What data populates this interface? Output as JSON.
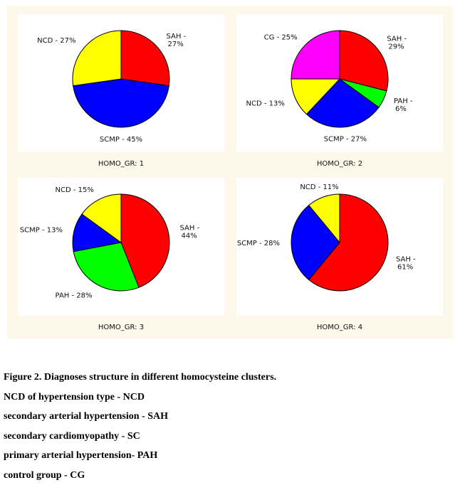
{
  "chart_data": [
    {
      "type": "pie",
      "group_label": "HOMO_GR: 1",
      "slices": [
        {
          "abbr": "SAH",
          "label": "SAH -",
          "pct_text": "27%",
          "value": 27,
          "color": "#ff0000"
        },
        {
          "abbr": "SCMP",
          "label": "SCMP -",
          "pct_text": "45%",
          "value": 45,
          "color": "#0000ff"
        },
        {
          "abbr": "NCD",
          "label": "NCD -",
          "pct_text": "27%",
          "value": 27,
          "color": "#ffff00"
        }
      ]
    },
    {
      "type": "pie",
      "group_label": "HOMO_GR: 2",
      "slices": [
        {
          "abbr": "SAH",
          "label": "SAH -",
          "pct_text": "29%",
          "value": 29,
          "color": "#ff0000"
        },
        {
          "abbr": "PAH",
          "label": "PAH -",
          "pct_text": "6%",
          "value": 6,
          "color": "#00ff00"
        },
        {
          "abbr": "SCMP",
          "label": "SCMP -",
          "pct_text": "27%",
          "value": 27,
          "color": "#0000ff"
        },
        {
          "abbr": "NCD",
          "label": "NCD -",
          "pct_text": "13%",
          "value": 13,
          "color": "#ffff00"
        },
        {
          "abbr": "CG",
          "label": "CG -",
          "pct_text": "25%",
          "value": 25,
          "color": "#ff00ff"
        }
      ]
    },
    {
      "type": "pie",
      "group_label": "HOMO_GR: 3",
      "slices": [
        {
          "abbr": "SAH",
          "label": "SAH -",
          "pct_text": "44%",
          "value": 44,
          "color": "#ff0000"
        },
        {
          "abbr": "PAH",
          "label": "PAH -",
          "pct_text": "28%",
          "value": 28,
          "color": "#00ff00"
        },
        {
          "abbr": "SCMP",
          "label": "SCMP -",
          "pct_text": "13%",
          "value": 13,
          "color": "#0000ff"
        },
        {
          "abbr": "NCD",
          "label": "NCD -",
          "pct_text": "15%",
          "value": 15,
          "color": "#ffff00"
        }
      ]
    },
    {
      "type": "pie",
      "group_label": "HOMO_GR: 4",
      "slices": [
        {
          "abbr": "SAH",
          "label": "SAH -",
          "pct_text": "61%",
          "value": 61,
          "color": "#ff0000"
        },
        {
          "abbr": "SCMP",
          "label": "SCMP -",
          "pct_text": "28%",
          "value": 28,
          "color": "#0000ff"
        },
        {
          "abbr": "NCD",
          "label": "NCD -",
          "pct_text": "11%",
          "value": 11,
          "color": "#ffff00"
        }
      ]
    }
  ],
  "caption": {
    "title": "Figure 2. Diagnoses structure in different homocysteine clusters.",
    "legend_lines": [
      "NCD of hypertension type - NCD",
      "secondary arterial hypertension - SAH",
      "secondary cardiomyopathy - SC",
      "primary arterial hypertension- PAH",
      "control group - CG"
    ]
  }
}
